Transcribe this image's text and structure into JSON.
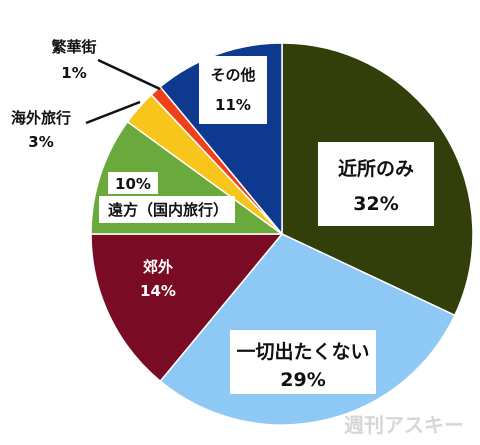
{
  "chart_data": {
    "type": "pie",
    "slices": [
      {
        "label": "近所のみ",
        "percent_text": "32%",
        "value": 32,
        "color": "#333f0a"
      },
      {
        "label": "一切出たくない",
        "percent_text": "29%",
        "value": 29,
        "color": "#8ec8f4"
      },
      {
        "label": "郊外",
        "percent_text": "14%",
        "value": 14,
        "color": "#7a0b24"
      },
      {
        "label": "遠方（国内旅行）",
        "percent_text": "10%",
        "value": 10,
        "color": "#6aa93c"
      },
      {
        "label": "海外旅行",
        "percent_text": "3%",
        "value": 3,
        "color": "#f7c51b"
      },
      {
        "label": "繁華街",
        "percent_text": "1%",
        "value": 1,
        "color": "#f0401a"
      },
      {
        "label": "その他",
        "percent_text": "11%",
        "value": 11,
        "color": "#0d3a8e"
      }
    ]
  },
  "watermark": "週刊アスキー"
}
